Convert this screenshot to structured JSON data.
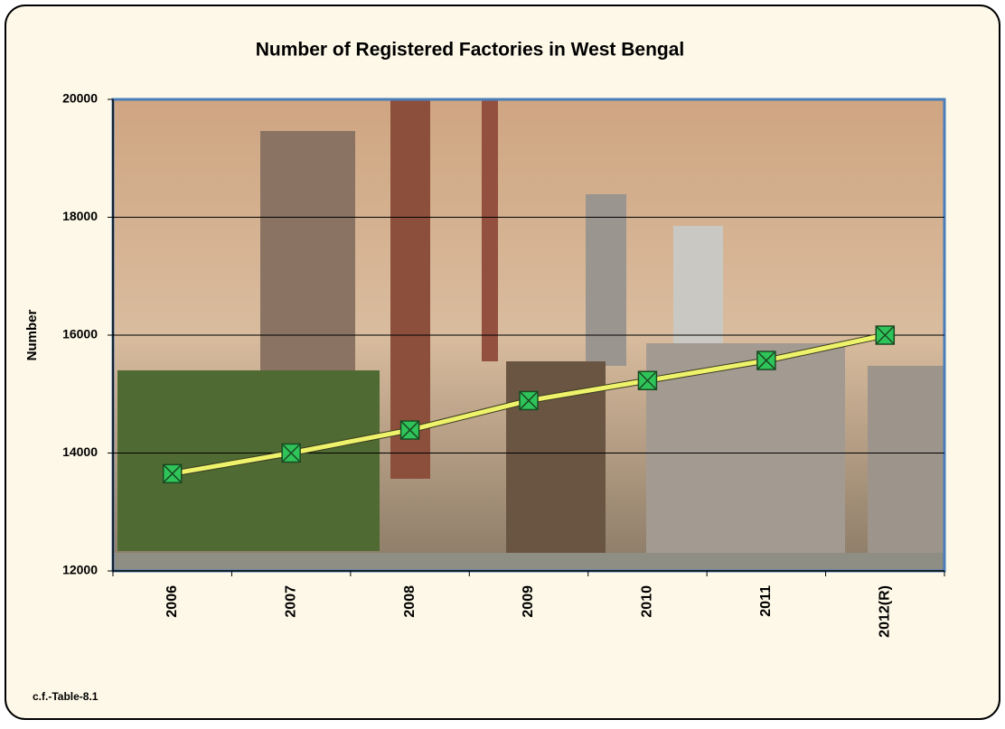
{
  "chart_data": {
    "type": "line",
    "title": "Number of Registered Factories in West Bengal",
    "y_label": "Number",
    "note": "c.f.-Table-8.1",
    "categories": [
      "2006",
      "2007",
      "2008",
      "2009",
      "2010",
      "2011",
      "2012(R)"
    ],
    "values": [
      13650,
      14000,
      14390,
      14890,
      15230,
      15570,
      16000
    ],
    "color": "#eef36b",
    "marker_color": "#2fc45a",
    "ylim": [
      12000,
      20000
    ],
    "yticks": [
      12000,
      14000,
      16000,
      18000,
      20000
    ],
    "grid": true
  }
}
